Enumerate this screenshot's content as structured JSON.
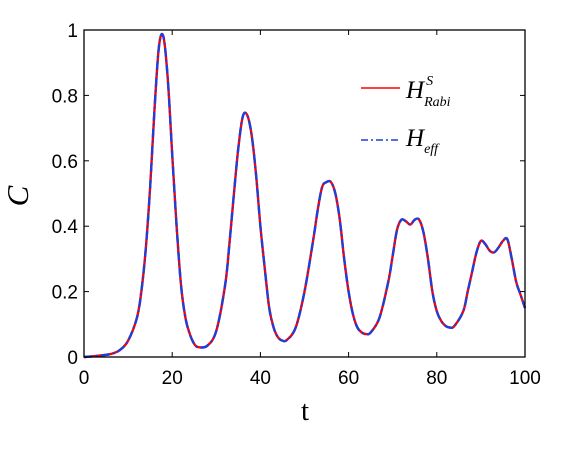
{
  "chart_data": {
    "type": "line",
    "title": "",
    "xlabel": "t",
    "ylabel": "C",
    "xlim": [
      0,
      100
    ],
    "ylim": [
      0,
      1
    ],
    "xticks": [
      0,
      20,
      40,
      60,
      80,
      100
    ],
    "yticks": [
      0,
      0.2,
      0.4,
      0.6,
      0.8,
      1
    ],
    "xtick_labels": [
      "0",
      "20",
      "40",
      "60",
      "80",
      "100"
    ],
    "ytick_labels": [
      "0",
      "0.2",
      "0.4",
      "0.6",
      "0.8",
      "1"
    ],
    "grid": false,
    "legend_position": "top-right",
    "legend": [
      {
        "base": "H",
        "sup": "S",
        "sub": "Rabi",
        "color": "#ff0000",
        "style": "solid"
      },
      {
        "base": "H",
        "sup": "",
        "sub": "eff",
        "color": "#1f3fd6",
        "style": "dashdot"
      }
    ],
    "series": [
      {
        "color": "#ff0000",
        "style": "solid",
        "x": [
          0,
          2,
          4,
          6,
          8,
          10,
          12,
          13,
          14,
          15,
          16,
          17,
          18,
          19,
          20,
          21,
          22,
          23,
          24,
          25,
          26,
          28,
          30,
          32,
          33,
          34,
          35,
          36,
          37,
          38,
          39,
          40,
          41,
          42,
          43,
          44,
          45,
          46,
          48,
          50,
          52,
          53,
          54,
          55,
          56,
          57,
          58,
          59,
          60,
          61,
          62,
          63,
          64,
          65,
          67,
          69,
          70,
          71,
          72,
          73,
          74,
          75,
          76,
          77,
          78,
          79,
          80,
          81,
          82,
          83,
          84,
          86,
          87,
          88,
          89,
          90,
          91,
          92,
          93,
          94,
          95,
          96,
          97,
          98,
          99,
          100
        ],
        "y": [
          0.0,
          0.002,
          0.005,
          0.009,
          0.02,
          0.05,
          0.12,
          0.2,
          0.33,
          0.52,
          0.76,
          0.95,
          0.98,
          0.85,
          0.62,
          0.4,
          0.22,
          0.12,
          0.07,
          0.04,
          0.03,
          0.035,
          0.08,
          0.22,
          0.35,
          0.5,
          0.64,
          0.735,
          0.74,
          0.68,
          0.56,
          0.4,
          0.27,
          0.15,
          0.09,
          0.06,
          0.05,
          0.052,
          0.09,
          0.2,
          0.36,
          0.45,
          0.52,
          0.535,
          0.535,
          0.5,
          0.42,
          0.3,
          0.2,
          0.13,
          0.09,
          0.075,
          0.07,
          0.075,
          0.12,
          0.23,
          0.31,
          0.39,
          0.42,
          0.415,
          0.405,
          0.42,
          0.42,
          0.38,
          0.3,
          0.2,
          0.14,
          0.11,
          0.095,
          0.09,
          0.095,
          0.14,
          0.2,
          0.26,
          0.32,
          0.355,
          0.345,
          0.325,
          0.32,
          0.335,
          0.355,
          0.36,
          0.3,
          0.23,
          0.19,
          0.15
        ]
      },
      {
        "color": "#1f3fd6",
        "style": "dashdot",
        "x": [
          0,
          2,
          4,
          6,
          8,
          10,
          12,
          13,
          14,
          15,
          16,
          17,
          18,
          19,
          20,
          21,
          22,
          23,
          24,
          25,
          26,
          28,
          30,
          32,
          33,
          34,
          35,
          36,
          37,
          38,
          39,
          40,
          41,
          42,
          43,
          44,
          45,
          46,
          48,
          50,
          52,
          53,
          54,
          55,
          56,
          57,
          58,
          59,
          60,
          61,
          62,
          63,
          64,
          65,
          67,
          69,
          70,
          71,
          72,
          73,
          74,
          75,
          76,
          77,
          78,
          79,
          80,
          81,
          82,
          83,
          84,
          86,
          87,
          88,
          89,
          90,
          91,
          92,
          93,
          94,
          95,
          96,
          97,
          98,
          99,
          100
        ],
        "y": [
          0.0,
          0.002,
          0.005,
          0.009,
          0.02,
          0.05,
          0.12,
          0.2,
          0.33,
          0.52,
          0.76,
          0.95,
          0.98,
          0.85,
          0.62,
          0.4,
          0.22,
          0.12,
          0.07,
          0.04,
          0.03,
          0.035,
          0.08,
          0.22,
          0.35,
          0.5,
          0.64,
          0.735,
          0.74,
          0.68,
          0.56,
          0.4,
          0.27,
          0.15,
          0.09,
          0.06,
          0.05,
          0.052,
          0.09,
          0.2,
          0.36,
          0.45,
          0.52,
          0.535,
          0.535,
          0.5,
          0.42,
          0.3,
          0.2,
          0.13,
          0.09,
          0.075,
          0.07,
          0.075,
          0.12,
          0.23,
          0.31,
          0.39,
          0.42,
          0.415,
          0.405,
          0.42,
          0.42,
          0.38,
          0.3,
          0.2,
          0.14,
          0.11,
          0.095,
          0.09,
          0.095,
          0.14,
          0.2,
          0.26,
          0.32,
          0.355,
          0.345,
          0.325,
          0.32,
          0.335,
          0.355,
          0.36,
          0.3,
          0.23,
          0.19,
          0.15
        ]
      }
    ]
  }
}
